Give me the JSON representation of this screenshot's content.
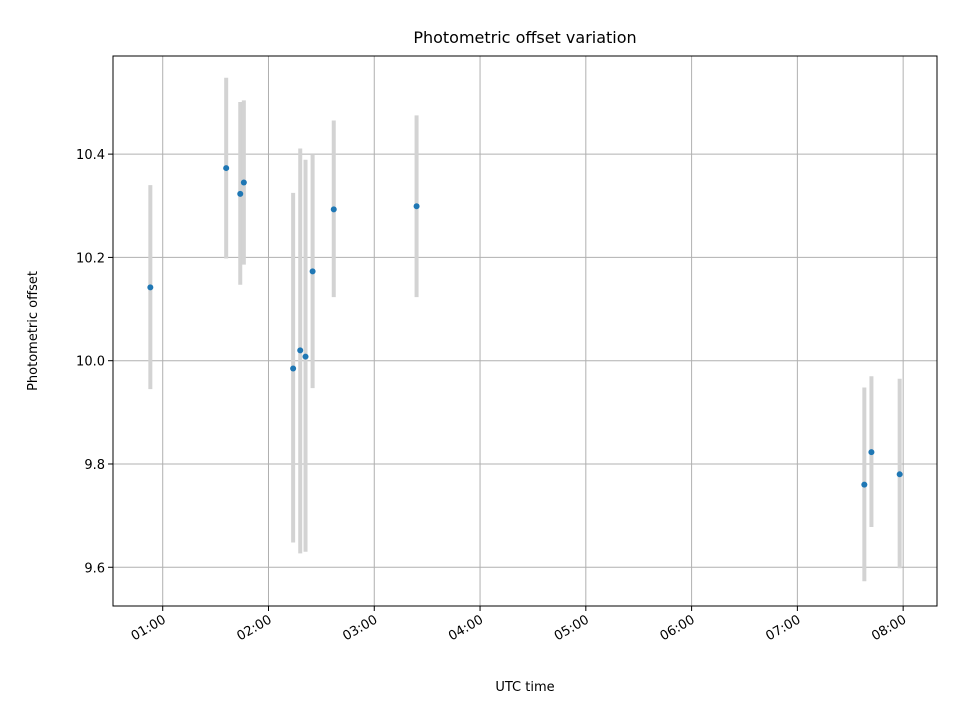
{
  "chart_data": {
    "type": "scatter",
    "title": "Photometric offset variation",
    "xlabel": "UTC time",
    "ylabel": "Photometric offset",
    "x_tick_labels": [
      "01:00",
      "02:00",
      "03:00",
      "04:00",
      "05:00",
      "06:00",
      "07:00",
      "08:00"
    ],
    "x_ticks_hours": [
      1,
      2,
      3,
      4,
      5,
      6,
      7,
      8
    ],
    "y_ticks": [
      9.6,
      9.8,
      10.0,
      10.2,
      10.4
    ],
    "y_tick_labels": [
      "9.6",
      "9.8",
      "10.0",
      "10.2",
      "10.4"
    ],
    "xlim_hours": [
      0.53,
      8.32
    ],
    "ylim": [
      9.525,
      10.59
    ],
    "grid": true,
    "marker_color": "#1f77b4",
    "errorbar_color": "#d3d3d3",
    "points": [
      {
        "t": 0.883,
        "y": 10.142,
        "lo": 9.945,
        "hi": 10.34
      },
      {
        "t": 1.6,
        "y": 10.373,
        "lo": 10.198,
        "hi": 10.548
      },
      {
        "t": 1.733,
        "y": 10.323,
        "lo": 10.147,
        "hi": 10.501
      },
      {
        "t": 1.767,
        "y": 10.345,
        "lo": 10.186,
        "hi": 10.504
      },
      {
        "t": 2.233,
        "y": 9.985,
        "lo": 9.648,
        "hi": 10.325
      },
      {
        "t": 2.3,
        "y": 10.02,
        "lo": 9.627,
        "hi": 10.411
      },
      {
        "t": 2.35,
        "y": 10.008,
        "lo": 9.63,
        "hi": 10.389
      },
      {
        "t": 2.417,
        "y": 10.173,
        "lo": 9.947,
        "hi": 10.4
      },
      {
        "t": 2.617,
        "y": 10.293,
        "lo": 10.123,
        "hi": 10.465
      },
      {
        "t": 3.4,
        "y": 10.299,
        "lo": 10.123,
        "hi": 10.475
      },
      {
        "t": 7.633,
        "y": 9.76,
        "lo": 9.573,
        "hi": 9.948
      },
      {
        "t": 7.7,
        "y": 9.823,
        "lo": 9.678,
        "hi": 9.97
      },
      {
        "t": 7.967,
        "y": 9.78,
        "lo": 9.598,
        "hi": 9.965
      }
    ]
  }
}
